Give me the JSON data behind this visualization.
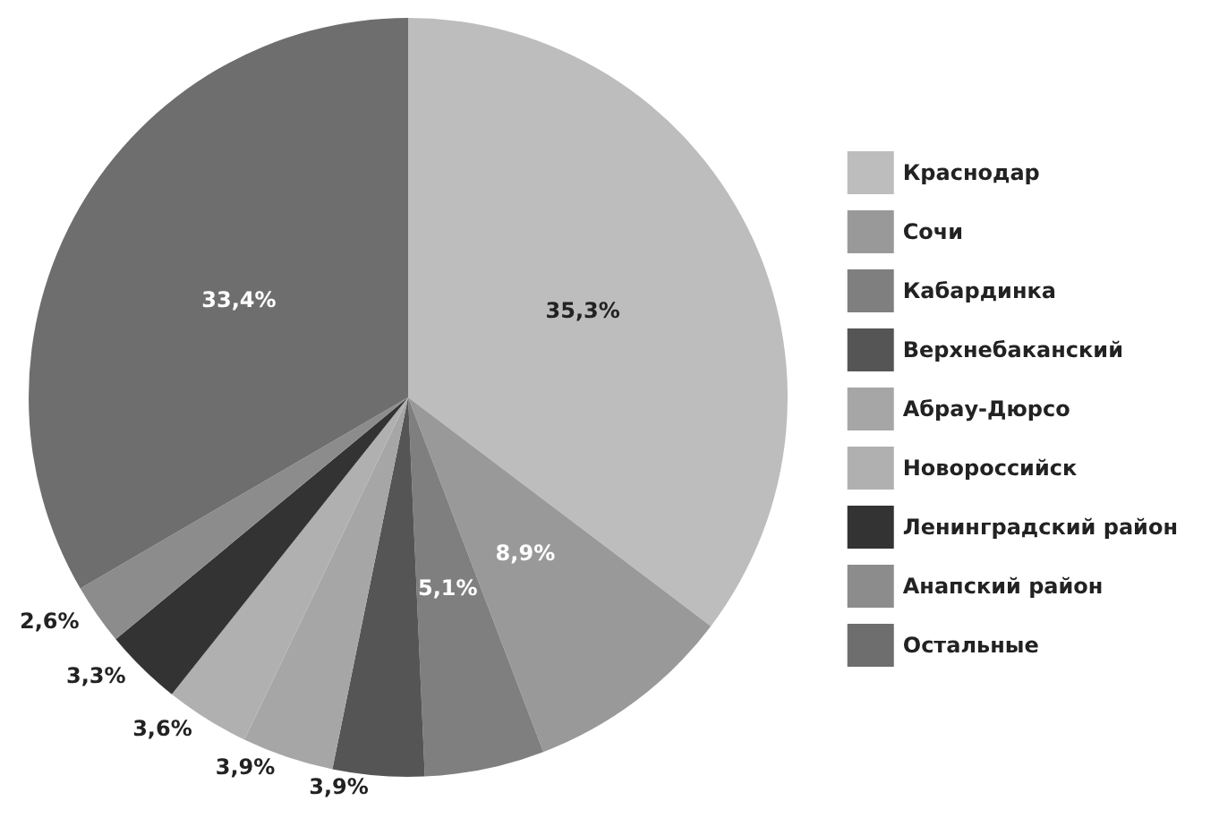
{
  "chart_data": {
    "type": "pie",
    "categories": [
      "Краснодар",
      "Сочи",
      "Кабардинка",
      "Верхнебаканский",
      "Абрау-Дюрсо",
      "Новороссийск",
      "Ленинградский район",
      "Анапский район",
      "Остальные"
    ],
    "values": [
      35.3,
      8.9,
      5.1,
      3.9,
      3.9,
      3.6,
      3.3,
      2.6,
      33.4
    ],
    "value_labels": [
      "35,3%",
      "8,9%",
      "5,1%",
      "3,9%",
      "3,9%",
      "3,6%",
      "3,3%",
      "2,6%",
      "33,4%"
    ],
    "colors": [
      "#bdbdbd",
      "#999999",
      "#7f7f7f",
      "#555555",
      "#a6a6a6",
      "#b0b0b0",
      "#333333",
      "#8c8c8c",
      "#6e6e6e"
    ],
    "legend": "right"
  }
}
